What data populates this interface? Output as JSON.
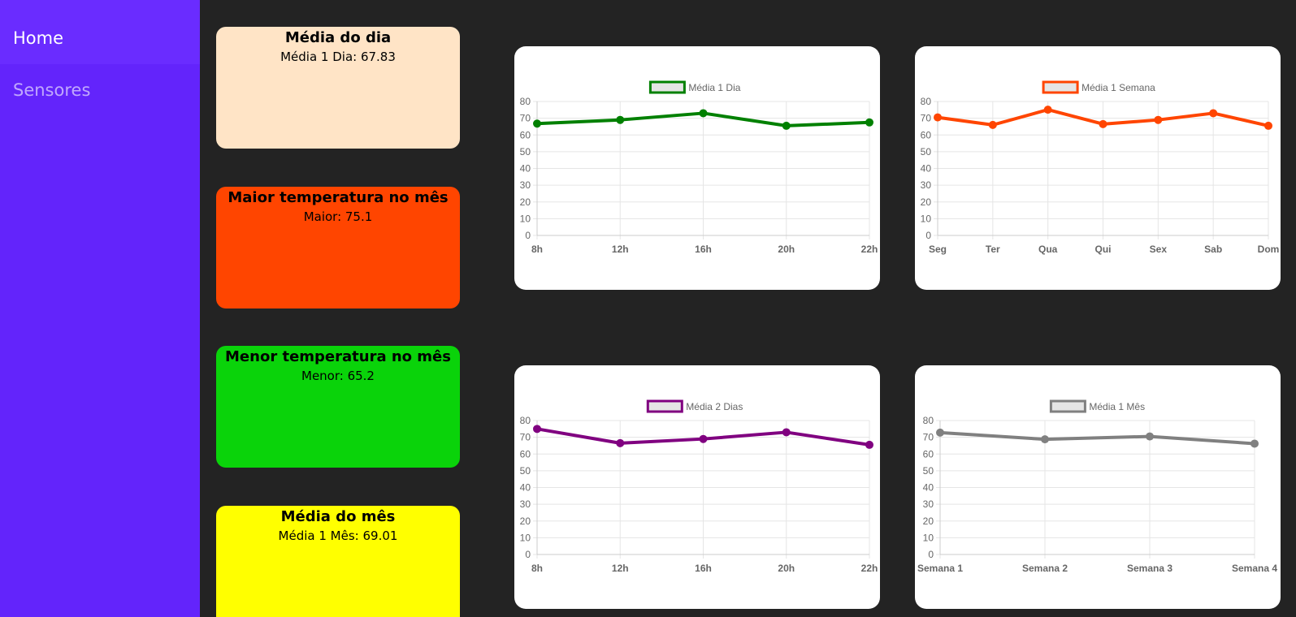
{
  "sidebar": {
    "items": [
      {
        "label": "Home",
        "active": true
      },
      {
        "label": "Sensores",
        "active": false
      }
    ],
    "color": "#6324fb"
  },
  "cards": [
    {
      "title": "Média do dia",
      "value": "Média 1 Dia: 67.83",
      "color": "#ffe4c6"
    },
    {
      "title": "Maior temperatura no mês",
      "value": "Maior: 75.1",
      "color": "#ff4500"
    },
    {
      "title": "Menor temperatura no mês",
      "value": "Menor: 65.2",
      "color": "#0ad30a"
    },
    {
      "title": "Média do mês",
      "value": "Média 1 Mês: 69.01",
      "color": "#ffff00"
    }
  ],
  "chart_data": [
    {
      "type": "line",
      "title": "",
      "legend_position": "top",
      "categories": [
        "8h",
        "12h",
        "16h",
        "20h",
        "22h"
      ],
      "series": [
        {
          "name": "Média 1 Dia",
          "color": "#008000",
          "values": [
            66.8,
            69,
            73,
            65.5,
            67.5
          ]
        }
      ],
      "ylim": [
        0,
        80
      ],
      "yticks": [
        0,
        10,
        20,
        30,
        40,
        50,
        60,
        70,
        80
      ],
      "grid": true
    },
    {
      "type": "line",
      "title": "",
      "legend_position": "top",
      "categories": [
        "Seg",
        "Ter",
        "Qua",
        "Qui",
        "Sex",
        "Sab",
        "Dom"
      ],
      "series": [
        {
          "name": "Média 1 Semana",
          "color": "#ff4500",
          "values": [
            70.5,
            66,
            75.1,
            66.5,
            69,
            73,
            65.5
          ]
        }
      ],
      "ylim": [
        0,
        80
      ],
      "yticks": [
        0,
        10,
        20,
        30,
        40,
        50,
        60,
        70,
        80
      ],
      "grid": true
    },
    {
      "type": "line",
      "title": "",
      "legend_position": "top",
      "categories": [
        "8h",
        "12h",
        "16h",
        "20h",
        "22h"
      ],
      "series": [
        {
          "name": "Média 2 Dias",
          "color": "#800080",
          "values": [
            75,
            66.5,
            69,
            73,
            65.5
          ]
        }
      ],
      "ylim": [
        0,
        80
      ],
      "yticks": [
        0,
        10,
        20,
        30,
        40,
        50,
        60,
        70,
        80
      ],
      "grid": true
    },
    {
      "type": "line",
      "title": "",
      "legend_position": "top",
      "categories": [
        "Semana 1",
        "Semana 2",
        "Semana 3",
        "Semana 4"
      ],
      "series": [
        {
          "name": "Média 1 Mês",
          "color": "#808080",
          "values": [
            72.8,
            68.8,
            70.5,
            66.2
          ]
        }
      ],
      "ylim": [
        0,
        80
      ],
      "yticks": [
        0,
        10,
        20,
        30,
        40,
        50,
        60,
        70,
        80
      ],
      "grid": true
    }
  ]
}
